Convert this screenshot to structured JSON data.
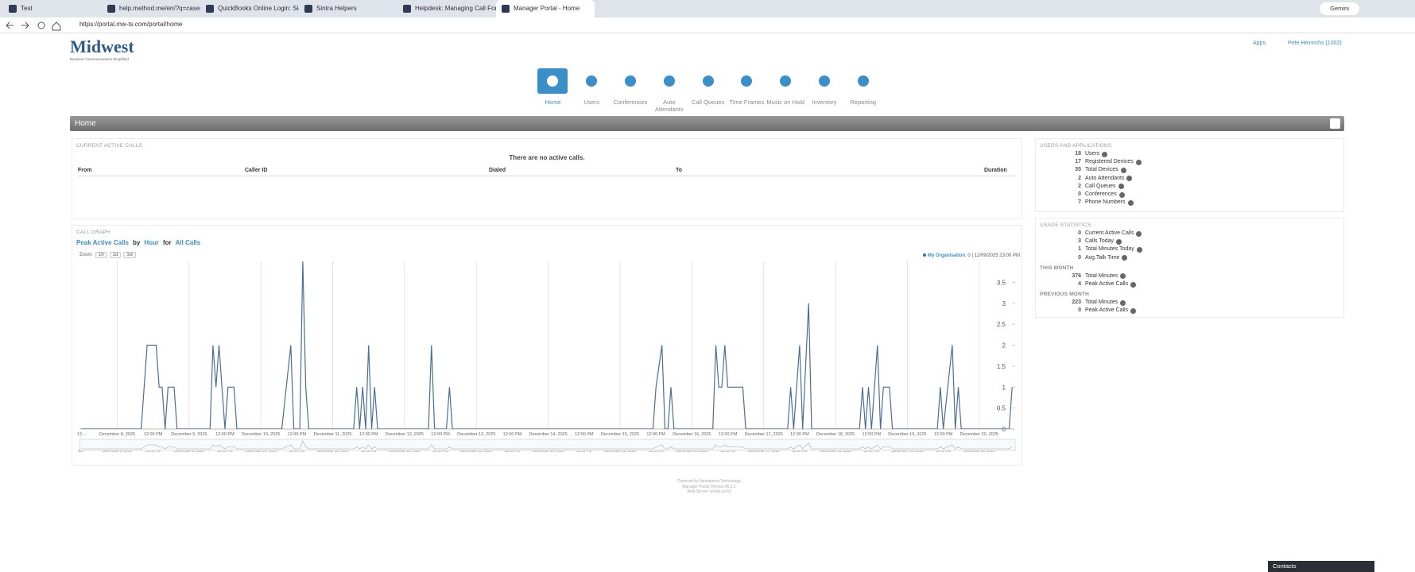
{
  "browser": {
    "tabs": [
      "Test",
      "help.method.me/en/?q=cases",
      "QuickBooks Online Login: Sign...",
      "Sintra Helpers",
      "Helpdesk: Managing Call Forw...",
      "Manager Portal - Home"
    ],
    "url": "https://portal.mw-ts.com/portal/home",
    "gemini": "Gemini"
  },
  "header": {
    "logo": "Midwest",
    "logo_sub": "Business Communications Simplified",
    "apps": "Apps",
    "user": "Pete Heinrichs (1002)"
  },
  "nav": [
    "Home",
    "Users",
    "Conferences",
    "Auto Attendants",
    "Call Queues",
    "Time Frames",
    "Music on Hold",
    "Inventory",
    "Reporting"
  ],
  "page_title": "Home",
  "active_calls": {
    "title": "CURRENT ACTIVE CALLS",
    "empty": "There are no active calls.",
    "columns": [
      "From",
      "Caller ID",
      "Dialed",
      "To",
      "Duration"
    ]
  },
  "call_graph": {
    "title": "CALL GRAPH",
    "metric": "Peak Active Calls",
    "by": "by",
    "period": "Hour",
    "for": "for",
    "scope": "All Calls",
    "zoom": "Zoom:",
    "zoom_buttons": [
      "1h",
      "1d",
      "1w"
    ],
    "legend_info": ": 0 | 12/09/2025 23:00 PM",
    "chart": {
      "type": "line",
      "x": [
        -12,
        8,
        10,
        13,
        14,
        15,
        16,
        17,
        19,
        20,
        31,
        32,
        33,
        34,
        35,
        36,
        37,
        39,
        40,
        55,
        58,
        59,
        61,
        62,
        63,
        64,
        79,
        80,
        81,
        82,
        83,
        84,
        85,
        86,
        87,
        104,
        105,
        106,
        110,
        111,
        112,
        179,
        180,
        182,
        183,
        184,
        185,
        186,
        199,
        200,
        201,
        202,
        203,
        204,
        209,
        210,
        224,
        225,
        226,
        227,
        228,
        229,
        231,
        232,
        248,
        249,
        250,
        251,
        252,
        254,
        255,
        256,
        258,
        259,
        274,
        275,
        276,
        279,
        280,
        281,
        282,
        298,
        299
      ],
      "series": [
        {
          "name": "My Organisation",
          "color": "#4a6f96",
          "values": [
            0,
            0,
            2,
            2,
            1,
            1,
            0,
            1,
            1,
            0,
            0,
            2,
            1,
            2,
            1,
            0,
            1,
            1,
            0,
            0,
            2,
            0,
            0,
            4,
            1,
            0,
            0,
            1,
            0,
            1,
            0,
            2,
            0,
            1,
            0,
            0,
            2,
            0,
            0,
            1,
            0,
            0,
            1,
            2,
            0,
            0,
            1,
            0,
            0,
            2,
            1,
            1,
            2,
            1,
            1,
            0,
            0,
            1,
            0,
            1,
            2,
            0,
            3,
            0,
            0,
            1,
            0,
            1,
            0,
            2,
            0,
            1,
            1,
            0,
            0,
            1,
            0,
            2,
            0,
            1,
            0,
            0,
            1
          ]
        }
      ],
      "xlim": [
        -12.6,
        300
      ],
      "ylim": [
        0,
        4
      ],
      "yticks": [
        0,
        0.5,
        1,
        1.5,
        2,
        2.5,
        3,
        3.5
      ],
      "xticks": [
        {
          "value": -12,
          "label": "12..."
        },
        {
          "value": 0,
          "label": "December 8, 2025"
        },
        {
          "value": 12,
          "label": "12:00 PM"
        },
        {
          "value": 24,
          "label": "December 9, 2025"
        },
        {
          "value": 36,
          "label": "12:00 PM"
        },
        {
          "value": 48,
          "label": "December 10, 2025"
        },
        {
          "value": 60,
          "label": "12:00 PM"
        },
        {
          "value": 72,
          "label": "December 11, 2025"
        },
        {
          "value": 84,
          "label": "12:00 PM"
        },
        {
          "value": 96,
          "label": "December 12, 2025"
        },
        {
          "value": 108,
          "label": "12:00 PM"
        },
        {
          "value": 120,
          "label": "December 13, 2025"
        },
        {
          "value": 132,
          "label": "12:00 PM"
        },
        {
          "value": 144,
          "label": "December 14, 2025"
        },
        {
          "value": 156,
          "label": "12:00 PM"
        },
        {
          "value": 168,
          "label": "December 15, 2025"
        },
        {
          "value": 180,
          "label": "12:00 PM"
        },
        {
          "value": 192,
          "label": "December 16, 2025"
        },
        {
          "value": 204,
          "label": "12:00 PM"
        },
        {
          "value": 216,
          "label": "December 17, 2025"
        },
        {
          "value": 228,
          "label": "12:00 PM"
        },
        {
          "value": 240,
          "label": "December 18, 2025"
        },
        {
          "value": 252,
          "label": "12:00 PM"
        },
        {
          "value": 264,
          "label": "December 19, 2025"
        },
        {
          "value": 276,
          "label": "12:00 PM"
        },
        {
          "value": 288,
          "label": "December 20, 2025"
        }
      ],
      "grid": true
    }
  },
  "users_apps": {
    "title": "USERS AND APPLICATIONS",
    "items": [
      [
        18,
        "Users"
      ],
      [
        17,
        "Registered Devices"
      ],
      [
        35,
        "Total Devices"
      ],
      [
        2,
        "Auto Attendants"
      ],
      [
        2,
        "Call Queues"
      ],
      [
        0,
        "Conferences"
      ],
      [
        7,
        "Phone Numbers"
      ]
    ]
  },
  "usage": {
    "title": "USAGE STATISTICS",
    "items": [
      [
        0,
        "Current Active Calls"
      ],
      [
        3,
        "Calls Today"
      ],
      [
        1,
        "Total Minutes Today"
      ],
      [
        0,
        "Avg.Talk Time"
      ]
    ],
    "this_month": {
      "title": "THIS MONTH",
      "items": [
        [
          376,
          "Total Minutes"
        ],
        [
          4,
          "Peak Active Calls"
        ]
      ]
    },
    "previous_month": {
      "title": "PREVIOUS MONTH",
      "items": [
        [
          223,
          "Total Minutes"
        ],
        [
          0,
          "Peak Active Calls"
        ]
      ]
    }
  },
  "footer": [
    "Powered by Netsapiens Technology",
    "Manager Portal Version 45.2.1",
    "Web Server: portal-cz-b2"
  ],
  "contacts": "Contacts"
}
